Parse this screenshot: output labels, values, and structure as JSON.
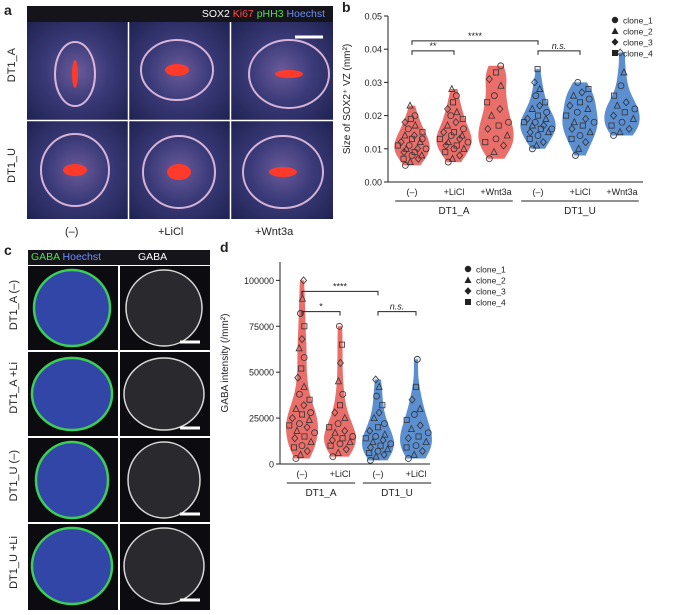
{
  "panel_a": {
    "label": "a",
    "legend": [
      {
        "text": "SOX2",
        "color": "#ffffff"
      },
      {
        "text": "Ki67",
        "color": "#ff4d4d"
      },
      {
        "text": "pHH3",
        "color": "#55dd55"
      },
      {
        "text": "Hoechst",
        "color": "#6f8dff"
      }
    ],
    "rows": [
      "DT1_A",
      "DT1_U"
    ],
    "cols": [
      "(–)",
      "+LiCl",
      "+Wnt3a"
    ]
  },
  "panel_c": {
    "label": "c",
    "header_left": [
      {
        "text": "GABA",
        "color": "#55dd55"
      },
      {
        "text": "Hoechst",
        "color": "#6f8dff"
      }
    ],
    "header_right": "GABA",
    "rows": [
      "DT1_A (–)",
      "DT1_A +Li",
      "DT1_U (–)",
      "DT1_U +Li"
    ]
  },
  "chart_data": [
    {
      "panel": "b",
      "type": "scatter",
      "ylabel": "Size of SOX2⁺ VZ  (mm²)",
      "ylim": [
        0,
        0.05
      ],
      "yticks": [
        "0.00",
        "0.01",
        "0.02",
        "0.03",
        "0.04",
        "0.05"
      ],
      "categories": [
        "(–)",
        "+LiCl",
        "+Wnt3a",
        "(–)",
        "+LiCl",
        "+Wnt3a"
      ],
      "groups": [
        "DT1_A",
        "DT1_U"
      ],
      "colors": [
        "#ea6f6b",
        "#ea6f6b",
        "#ea6f6b",
        "#5b8fd0",
        "#5b8fd0",
        "#5b8fd0"
      ],
      "legend": [
        "clone_1",
        "clone_2",
        "clone_3",
        "clone_4"
      ],
      "significance": [
        {
          "from": 0,
          "to": 1,
          "label": "**",
          "y": 0.0395
        },
        {
          "from": 0,
          "to": 3,
          "label": "****",
          "y": 0.0425
        },
        {
          "from": 3,
          "to": 4,
          "label": "n.s.",
          "y": 0.0395
        }
      ],
      "values": [
        [
          0.005,
          0.006,
          0.007,
          0.007,
          0.008,
          0.008,
          0.009,
          0.009,
          0.01,
          0.01,
          0.01,
          0.011,
          0.011,
          0.012,
          0.012,
          0.013,
          0.013,
          0.014,
          0.014,
          0.015,
          0.016,
          0.017,
          0.018,
          0.019,
          0.02,
          0.023
        ],
        [
          0.006,
          0.007,
          0.008,
          0.009,
          0.01,
          0.01,
          0.011,
          0.011,
          0.012,
          0.012,
          0.013,
          0.013,
          0.014,
          0.014,
          0.015,
          0.015,
          0.016,
          0.017,
          0.018,
          0.019,
          0.02,
          0.021,
          0.022,
          0.024,
          0.026,
          0.028
        ],
        [
          0.007,
          0.009,
          0.011,
          0.012,
          0.013,
          0.014,
          0.016,
          0.017,
          0.018,
          0.02,
          0.022,
          0.024,
          0.026,
          0.029,
          0.031,
          0.033,
          0.035
        ],
        [
          0.01,
          0.011,
          0.012,
          0.013,
          0.014,
          0.015,
          0.015,
          0.016,
          0.016,
          0.017,
          0.017,
          0.018,
          0.018,
          0.019,
          0.019,
          0.02,
          0.021,
          0.022,
          0.023,
          0.024,
          0.026,
          0.028,
          0.03,
          0.034
        ],
        [
          0.008,
          0.01,
          0.012,
          0.013,
          0.014,
          0.015,
          0.016,
          0.017,
          0.018,
          0.018,
          0.019,
          0.02,
          0.021,
          0.022,
          0.023,
          0.024,
          0.025,
          0.026,
          0.027,
          0.028,
          0.03
        ],
        [
          0.014,
          0.015,
          0.016,
          0.017,
          0.018,
          0.019,
          0.02,
          0.021,
          0.022,
          0.023,
          0.024,
          0.026,
          0.029,
          0.033,
          0.039
        ]
      ]
    },
    {
      "panel": "d",
      "type": "scatter",
      "ylabel": "GABA intensity (/mm²)",
      "ylim": [
        0,
        110000
      ],
      "yticks": [
        "0",
        "25000",
        "50000",
        "75000",
        "100000"
      ],
      "categories": [
        "(–)",
        "+LiCl",
        "(–)",
        "+LiCl"
      ],
      "groups": [
        "DT1_A",
        "DT1_U"
      ],
      "colors": [
        "#ea6f6b",
        "#ea6f6b",
        "#5b8fd0",
        "#5b8fd0"
      ],
      "legend": [
        "clone_1",
        "clone_2",
        "clone_3",
        "clone_4"
      ],
      "significance": [
        {
          "from": 0,
          "to": 1,
          "label": "*",
          "y": 83000
        },
        {
          "from": 0,
          "to": 2,
          "label": "****",
          "y": 94000
        },
        {
          "from": 2,
          "to": 3,
          "label": "n.s.",
          "y": 83000
        }
      ],
      "values": [
        [
          3000,
          5000,
          7000,
          9000,
          10000,
          12000,
          14000,
          15000,
          17000,
          18000,
          20000,
          21000,
          22000,
          24000,
          25000,
          27000,
          28000,
          30000,
          32000,
          35000,
          38000,
          42000,
          47000,
          52000,
          58000,
          63000,
          68000,
          75000,
          82000,
          90000,
          100000
        ],
        [
          4000,
          6000,
          8000,
          10000,
          11000,
          12000,
          13000,
          14000,
          15000,
          17000,
          18000,
          20000,
          22000,
          25000,
          28000,
          32000,
          38000,
          45000,
          55000,
          65000,
          75000
        ],
        [
          2000,
          4000,
          5000,
          6000,
          7000,
          8000,
          9000,
          10000,
          11000,
          12000,
          13000,
          14000,
          15000,
          16000,
          18000,
          20000,
          22000,
          25000,
          28000,
          32000,
          37000,
          42000,
          46000
        ],
        [
          3000,
          5000,
          7000,
          9000,
          10000,
          12000,
          14000,
          15000,
          17000,
          19000,
          21000,
          24000,
          27000,
          30000,
          35000,
          42000,
          57000
        ]
      ]
    }
  ]
}
